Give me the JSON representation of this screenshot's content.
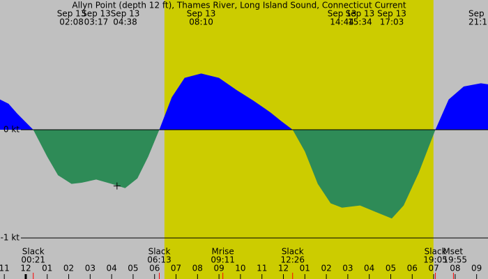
{
  "chart_data": {
    "type": "area",
    "title": "Allyn Point (depth 12 ft), Thames River, Long Island Sound, Connecticut Current",
    "background": "#c0c0c0",
    "daylight_color": "#cccc00",
    "daylight": [
      6.46,
      18.99
    ],
    "flood_color": "#0000ff",
    "ebb_color": "#2e8b57",
    "xlim": [
      -1.2,
      21.53
    ],
    "ylim": [
      -1.38,
      1.2
    ],
    "yticks": [
      {
        "value": 0,
        "label": "0 kt"
      },
      {
        "value": -1,
        "label": "-1 kt"
      }
    ],
    "xticks": [
      {
        "value": -1,
        "label": "11"
      },
      {
        "value": 0,
        "label": "12"
      },
      {
        "value": 1,
        "label": "01"
      },
      {
        "value": 2,
        "label": "02"
      },
      {
        "value": 3,
        "label": "03"
      },
      {
        "value": 4,
        "label": "04"
      },
      {
        "value": 5,
        "label": "05"
      },
      {
        "value": 6,
        "label": "06"
      },
      {
        "value": 7,
        "label": "07"
      },
      {
        "value": 8,
        "label": "08"
      },
      {
        "value": 9,
        "label": "09"
      },
      {
        "value": 10,
        "label": "10"
      },
      {
        "value": 11,
        "label": "11"
      },
      {
        "value": 12,
        "label": "12"
      },
      {
        "value": 13,
        "label": "01"
      },
      {
        "value": 14,
        "label": "02"
      },
      {
        "value": 15,
        "label": "03"
      },
      {
        "value": 16,
        "label": "04"
      },
      {
        "value": 17,
        "label": "05"
      },
      {
        "value": 18,
        "label": "06"
      },
      {
        "value": 19,
        "label": "07"
      },
      {
        "value": 20,
        "label": "08"
      },
      {
        "value": 21,
        "label": "09"
      }
    ],
    "x": [
      -1.2,
      -0.8,
      -0.4,
      0.35,
      1.0,
      1.5,
      2.13,
      2.6,
      3.28,
      4.0,
      4.63,
      5.2,
      5.7,
      6.22,
      6.8,
      7.4,
      8.17,
      9.0,
      9.8,
      10.6,
      11.4,
      11.9,
      12.43,
      13.0,
      13.6,
      14.2,
      14.73,
      15.57,
      16.3,
      17.05,
      17.6,
      18.3,
      19.08,
      19.7,
      20.4,
      21.2,
      21.53
    ],
    "values": [
      0.28,
      0.24,
      0.15,
      0,
      -0.25,
      -0.42,
      -0.5,
      -0.49,
      -0.46,
      -0.5,
      -0.54,
      -0.45,
      -0.25,
      0,
      0.3,
      0.48,
      0.52,
      0.48,
      0.37,
      0.27,
      0.16,
      0.08,
      0,
      -0.2,
      -0.5,
      -0.68,
      -0.72,
      -0.7,
      -0.76,
      -0.82,
      -0.7,
      -0.4,
      0,
      0.28,
      0.4,
      0.43,
      0.42
    ],
    "marker": {
      "x": 4.25,
      "y": -0.52
    },
    "top_events": [
      {
        "date": "Sep 13",
        "time": "02:08",
        "x": 2.13
      },
      {
        "date": "Sep 13",
        "time": "03:17",
        "x": 3.28
      },
      {
        "date": "Sep 13",
        "time": "04:38",
        "x": 4.63
      },
      {
        "date": "Sep 13",
        "time": "08:10",
        "x": 8.17
      },
      {
        "date": "Sep 13",
        "time": "14:44",
        "x": 14.73
      },
      {
        "date": "Sep 13",
        "time": "15:34",
        "x": 15.57
      },
      {
        "date": "Sep 13",
        "time": "17:03",
        "x": 17.05
      },
      {
        "date": "Sep",
        "time": "21:1",
        "x": 21.2
      }
    ],
    "bottom_events": [
      {
        "name": "Slack",
        "time": "00:21",
        "x": 0.35
      },
      {
        "name": "Slack",
        "time": "06:13",
        "x": 6.22
      },
      {
        "name": "Mrise",
        "time": "09:11",
        "x": 9.18
      },
      {
        "name": "Slack",
        "time": "12:26",
        "x": 12.43
      },
      {
        "name": "Slack",
        "time": "19:05",
        "x": 19.08
      },
      {
        "name": "Mset",
        "time": "19:55",
        "x": 19.92
      }
    ]
  }
}
